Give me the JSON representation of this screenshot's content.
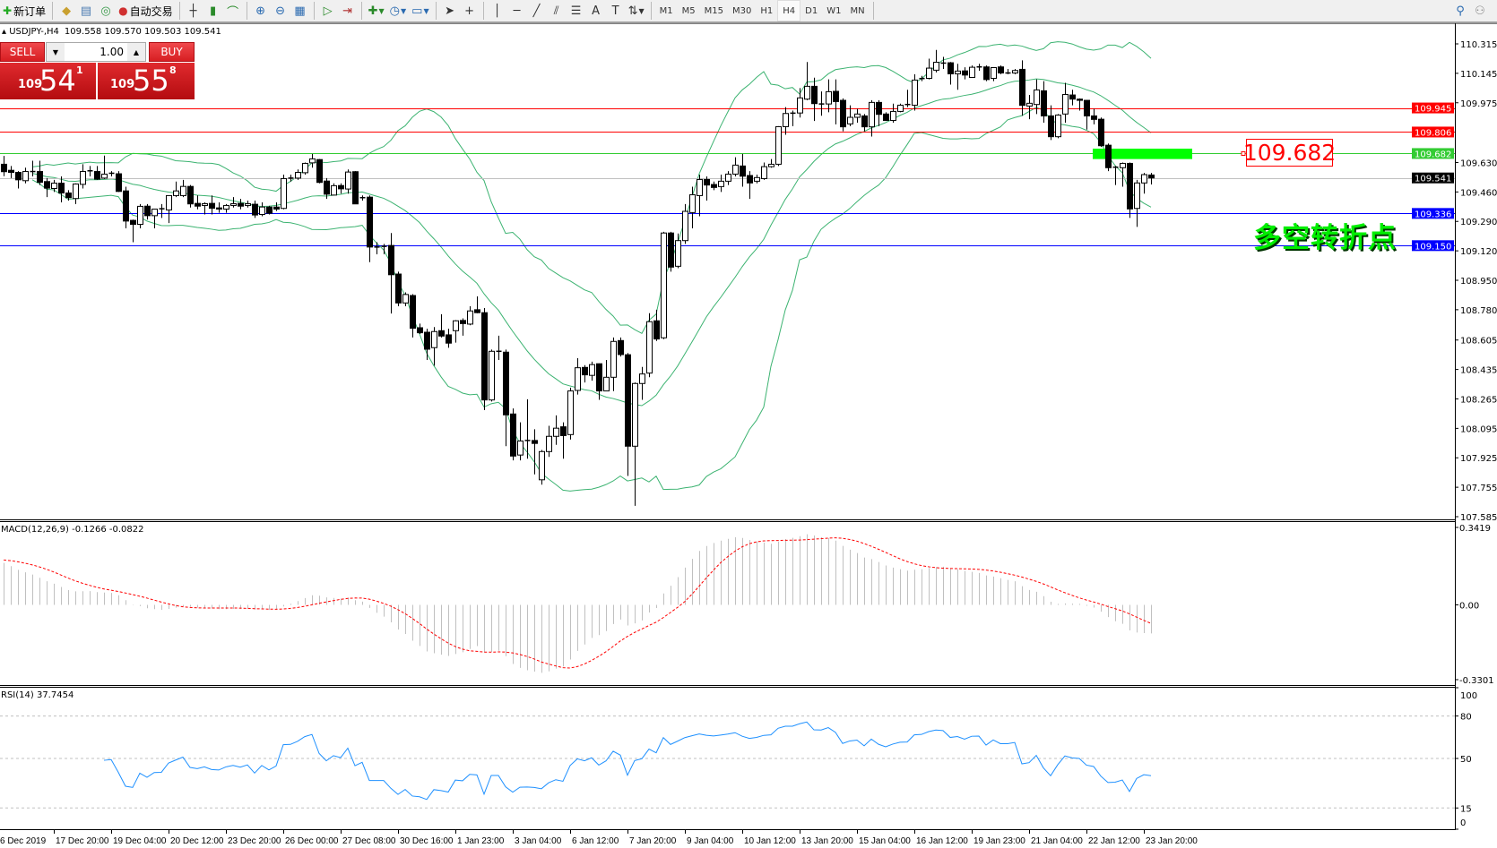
{
  "toolbar": {
    "new_order": "新订单",
    "auto_trading": "自动交易",
    "icons": [
      "new-order-icon",
      "history-icon",
      "market-watch-icon",
      "signals-icon",
      "auto-trading-icon",
      "bar-chart-icon",
      "candlestick-icon",
      "line-chart-icon",
      "zoom-in-icon",
      "zoom-out-icon",
      "tile-windows-icon",
      "auto-scroll-icon",
      "chart-shift-icon",
      "indicators-icon",
      "periods-icon",
      "templates-icon",
      "cursor-icon",
      "crosshair-icon",
      "vertical-line-icon",
      "horizontal-line-icon",
      "trendline-icon",
      "equidistant-channel-icon",
      "fibonacci-icon",
      "text-icon",
      "text-label-icon",
      "arrows-icon",
      "search-icon",
      "community-icon"
    ],
    "timeframes": [
      "M1",
      "M5",
      "M15",
      "M30",
      "H1",
      "H4",
      "D1",
      "W1",
      "MN"
    ],
    "active_timeframe": "H4"
  },
  "chart_header": {
    "symbol": "USDJPY-,H4",
    "ohlc_text": "109.558 109.570 109.503 109.541"
  },
  "trade_panel": {
    "sell_label": "SELL",
    "buy_label": "BUY",
    "lot": "1.00",
    "sell_price": {
      "prefix": "109",
      "big": "54",
      "sup": "1"
    },
    "buy_price": {
      "prefix": "109",
      "big": "55",
      "sup": "8"
    }
  },
  "annotation": {
    "level_label": "109.682",
    "text": "多空转折点"
  },
  "colors": {
    "resistance": "#ff0000",
    "pivot": "#33cc33",
    "bid": "#c0c0c0",
    "support": "#0000ff",
    "bands": "#3cb371",
    "macd_signal": "#ff0000",
    "rsi": "#1e90ff",
    "highlight": "#00ff00"
  },
  "chart_data": {
    "type": "candlestick",
    "symbol": "USDJPY-",
    "timeframe": "H4",
    "ylim": [
      107.585,
      110.315
    ],
    "price_ticks": [
      "110.315",
      "110.145",
      "109.975",
      "109.630",
      "109.460",
      "109.290",
      "109.120",
      "108.950",
      "108.780",
      "108.605",
      "108.435",
      "108.265",
      "108.095",
      "107.925",
      "107.755",
      "107.585"
    ],
    "levels": [
      {
        "price": 109.945,
        "label": "109.945",
        "color": "#ff0000"
      },
      {
        "price": 109.806,
        "label": "109.806",
        "color": "#ff0000"
      },
      {
        "price": 109.682,
        "label": "109.682",
        "color": "#33cc33"
      },
      {
        "price": 109.541,
        "label": "109.541",
        "color": "#000000",
        "line_color": "#c0c0c0"
      },
      {
        "price": 109.336,
        "label": "109.336",
        "color": "#0000ff"
      },
      {
        "price": 109.15,
        "label": "109.150",
        "color": "#0000ff"
      }
    ],
    "highlight_zone": [
      109.65,
      109.71
    ],
    "time_labels": [
      "6 Dec 2019",
      "17 Dec 20:00",
      "19 Dec 04:00",
      "20 Dec 12:00",
      "23 Dec 20:00",
      "26 Dec 00:00",
      "27 Dec 08:00",
      "30 Dec 16:00",
      "1 Jan 23:00",
      "3 Jan 04:00",
      "6 Jan 12:00",
      "7 Jan 20:00",
      "9 Jan 04:00",
      "10 Jan 12:00",
      "13 Jan 20:00",
      "15 Jan 04:00",
      "16 Jan 12:00",
      "19 Jan 23:00",
      "21 Jan 04:00",
      "22 Jan 12:00",
      "23 Jan 20:00"
    ],
    "bollinger": {
      "period": 20,
      "deviation": 2
    },
    "ohlc": [
      [
        109.62,
        109.668,
        109.551,
        109.577
      ],
      [
        109.585,
        109.61,
        109.54,
        109.573
      ],
      [
        109.573,
        109.58,
        109.48,
        109.53
      ],
      [
        109.525,
        109.6,
        109.51,
        109.578
      ],
      [
        109.578,
        109.64,
        109.55,
        109.578
      ],
      [
        109.578,
        109.64,
        109.5,
        109.516
      ],
      [
        109.52,
        109.54,
        109.43,
        109.482
      ],
      [
        109.48,
        109.53,
        109.46,
        109.511
      ],
      [
        109.511,
        109.55,
        109.4,
        109.454
      ],
      [
        109.454,
        109.47,
        109.41,
        109.427
      ],
      [
        109.422,
        109.51,
        109.39,
        109.506
      ],
      [
        109.504,
        109.62,
        109.48,
        109.578
      ],
      [
        109.582,
        109.61,
        109.55,
        109.582
      ],
      [
        109.578,
        109.61,
        109.53,
        109.534
      ],
      [
        109.54,
        109.67,
        109.535,
        109.563
      ],
      [
        109.568,
        109.58,
        109.55,
        109.568
      ],
      [
        109.565,
        109.58,
        109.46,
        109.463
      ],
      [
        109.466,
        109.49,
        109.25,
        109.292
      ],
      [
        109.296,
        109.3,
        109.17,
        109.273
      ],
      [
        109.273,
        109.39,
        109.25,
        109.377
      ],
      [
        109.378,
        109.39,
        109.3,
        109.323
      ],
      [
        109.323,
        109.36,
        109.25,
        109.361
      ],
      [
        109.363,
        109.39,
        109.31,
        109.363
      ],
      [
        109.356,
        109.44,
        109.28,
        109.439
      ],
      [
        109.439,
        109.52,
        109.43,
        109.466
      ],
      [
        109.439,
        109.53,
        109.43,
        109.492
      ],
      [
        109.492,
        109.5,
        109.37,
        109.391
      ],
      [
        109.394,
        109.44,
        109.36,
        109.378
      ],
      [
        109.382,
        109.4,
        109.33,
        109.392
      ],
      [
        109.394,
        109.44,
        109.33,
        109.366
      ],
      [
        109.368,
        109.4,
        109.34,
        109.361
      ],
      [
        109.361,
        109.39,
        109.34,
        109.382
      ],
      [
        109.382,
        109.43,
        109.37,
        109.392
      ],
      [
        109.394,
        109.42,
        109.36,
        109.378
      ],
      [
        109.382,
        109.41,
        109.37,
        109.392
      ],
      [
        109.389,
        109.41,
        109.31,
        109.327
      ],
      [
        109.33,
        109.4,
        109.32,
        109.373
      ],
      [
        109.373,
        109.38,
        109.33,
        109.337
      ],
      [
        109.373,
        109.4,
        109.35,
        109.361
      ],
      [
        109.365,
        109.56,
        109.36,
        109.537
      ],
      [
        109.54,
        109.56,
        109.52,
        109.54
      ],
      [
        109.54,
        109.59,
        109.53,
        109.573
      ],
      [
        109.571,
        109.63,
        109.56,
        109.625
      ],
      [
        109.628,
        109.68,
        109.6,
        109.651
      ],
      [
        109.647,
        109.65,
        109.51,
        109.515
      ],
      [
        109.523,
        109.54,
        109.42,
        109.447
      ],
      [
        109.442,
        109.51,
        109.44,
        109.496
      ],
      [
        109.497,
        109.51,
        109.45,
        109.478
      ],
      [
        109.477,
        109.59,
        109.45,
        109.575
      ],
      [
        109.577,
        109.58,
        109.39,
        109.391
      ],
      [
        109.427,
        109.44,
        109.41,
        109.427
      ],
      [
        109.43,
        109.44,
        109.055,
        109.142
      ],
      [
        109.142,
        109.17,
        109.1,
        109.142
      ],
      [
        109.146,
        109.16,
        109.1,
        109.141
      ],
      [
        109.151,
        109.223,
        108.758,
        108.982
      ],
      [
        108.986,
        109.0,
        108.8,
        108.819
      ],
      [
        108.819,
        108.88,
        108.8,
        108.868
      ],
      [
        108.862,
        108.87,
        108.62,
        108.673
      ],
      [
        108.676,
        108.7,
        108.64,
        108.647
      ],
      [
        108.65,
        108.67,
        108.49,
        108.552
      ],
      [
        108.561,
        108.68,
        108.457,
        108.654
      ],
      [
        108.659,
        108.754,
        108.62,
        108.628
      ],
      [
        108.635,
        108.67,
        108.56,
        108.587
      ],
      [
        108.659,
        108.72,
        108.59,
        108.716
      ],
      [
        108.718,
        108.73,
        108.63,
        108.7
      ],
      [
        108.697,
        108.8,
        108.69,
        108.773
      ],
      [
        108.78,
        108.857,
        108.76,
        108.763
      ],
      [
        108.763,
        108.79,
        108.2,
        108.259
      ],
      [
        108.259,
        108.55,
        108.25,
        108.54
      ],
      [
        108.54,
        108.63,
        108.49,
        108.54
      ],
      [
        108.535,
        108.55,
        107.992,
        108.173
      ],
      [
        108.178,
        108.21,
        107.91,
        107.935
      ],
      [
        107.941,
        108.13,
        107.91,
        108.022
      ],
      [
        108.025,
        108.263,
        107.92,
        108.025
      ],
      [
        108.025,
        108.09,
        107.829,
        108.008
      ],
      [
        107.798,
        107.97,
        107.77,
        107.961
      ],
      [
        107.961,
        108.11,
        107.93,
        108.049
      ],
      [
        108.049,
        108.17,
        108.0,
        108.096
      ],
      [
        108.104,
        108.13,
        107.92,
        108.053
      ],
      [
        108.059,
        108.33,
        108.03,
        108.311
      ],
      [
        108.314,
        108.5,
        108.29,
        108.445
      ],
      [
        108.447,
        108.46,
        108.36,
        108.404
      ],
      [
        108.401,
        108.48,
        108.37,
        108.463
      ],
      [
        108.468,
        108.47,
        108.26,
        108.311
      ],
      [
        108.311,
        108.49,
        108.31,
        108.39
      ],
      [
        108.39,
        108.62,
        108.31,
        108.597
      ],
      [
        108.602,
        108.62,
        108.51,
        108.521
      ],
      [
        108.52,
        108.53,
        107.82,
        107.992
      ],
      [
        107.992,
        108.36,
        107.648,
        108.354
      ],
      [
        108.354,
        108.45,
        108.26,
        108.409
      ],
      [
        108.414,
        108.76,
        108.39,
        108.711
      ],
      [
        108.716,
        108.78,
        108.6,
        108.611
      ],
      [
        108.618,
        109.23,
        108.61,
        109.223
      ],
      [
        109.223,
        109.23,
        109.0,
        109.026
      ],
      [
        109.031,
        109.22,
        109.02,
        109.179
      ],
      [
        109.179,
        109.39,
        109.16,
        109.348
      ],
      [
        109.341,
        109.49,
        109.25,
        109.444
      ],
      [
        109.439,
        109.56,
        109.32,
        109.532
      ],
      [
        109.532,
        109.55,
        109.41,
        109.5
      ],
      [
        109.503,
        109.52,
        109.47,
        109.486
      ],
      [
        109.491,
        109.56,
        109.46,
        109.522
      ],
      [
        109.522,
        109.58,
        109.5,
        109.563
      ],
      [
        109.563,
        109.66,
        109.55,
        109.615
      ],
      [
        109.61,
        109.68,
        109.49,
        109.551
      ],
      [
        109.555,
        109.58,
        109.42,
        109.512
      ],
      [
        109.522,
        109.56,
        109.51,
        109.543
      ],
      [
        109.537,
        109.63,
        109.53,
        109.606
      ],
      [
        109.606,
        109.65,
        109.6,
        109.62
      ],
      [
        109.62,
        109.84,
        109.61,
        109.837
      ],
      [
        109.837,
        109.95,
        109.79,
        109.913
      ],
      [
        109.915,
        109.93,
        109.84,
        109.915
      ],
      [
        109.916,
        110.06,
        109.89,
        110.003
      ],
      [
        109.996,
        110.21,
        109.99,
        110.07
      ],
      [
        110.07,
        110.12,
        109.87,
        109.97
      ],
      [
        109.968,
        110.04,
        109.9,
        109.968
      ],
      [
        109.968,
        110.11,
        109.92,
        110.039
      ],
      [
        110.041,
        110.11,
        109.85,
        109.982
      ],
      [
        109.989,
        110.0,
        109.81,
        109.836
      ],
      [
        109.853,
        109.96,
        109.84,
        109.891
      ],
      [
        109.891,
        109.94,
        109.86,
        109.91
      ],
      [
        109.899,
        109.91,
        109.81,
        109.836
      ],
      [
        109.836,
        109.99,
        109.78,
        109.977
      ],
      [
        109.977,
        109.99,
        109.84,
        109.908
      ],
      [
        109.91,
        109.92,
        109.87,
        109.873
      ],
      [
        109.873,
        109.97,
        109.86,
        109.925
      ],
      [
        109.925,
        109.97,
        109.92,
        109.961
      ],
      [
        109.965,
        110.05,
        109.95,
        109.965
      ],
      [
        109.961,
        110.14,
        109.93,
        110.106
      ],
      [
        110.115,
        110.13,
        110.1,
        110.115
      ],
      [
        110.116,
        110.23,
        110.11,
        110.175
      ],
      [
        110.163,
        110.28,
        110.15,
        110.209
      ],
      [
        110.204,
        110.24,
        110.17,
        110.204
      ],
      [
        110.206,
        110.21,
        110.08,
        110.142
      ],
      [
        110.142,
        110.2,
        110.05,
        110.158
      ],
      [
        110.159,
        110.18,
        110.11,
        110.135
      ],
      [
        110.121,
        110.19,
        110.12,
        110.18
      ],
      [
        110.182,
        110.2,
        110.16,
        110.182
      ],
      [
        110.182,
        110.19,
        110.1,
        110.109
      ],
      [
        110.116,
        110.18,
        110.1,
        110.178
      ],
      [
        110.182,
        110.19,
        110.14,
        110.147
      ],
      [
        110.147,
        110.17,
        110.14,
        110.147
      ],
      [
        110.147,
        110.17,
        110.14,
        110.161
      ],
      [
        110.168,
        110.22,
        109.9,
        109.96
      ],
      [
        109.956,
        110.02,
        109.88,
        109.972
      ],
      [
        109.965,
        110.11,
        109.91,
        110.049
      ],
      [
        110.044,
        110.1,
        109.86,
        109.899
      ],
      [
        109.899,
        109.96,
        109.76,
        109.779
      ],
      [
        109.779,
        109.91,
        109.77,
        109.904
      ],
      [
        109.91,
        110.09,
        109.86,
        110.023
      ],
      [
        110.02,
        110.05,
        109.96,
        109.996
      ],
      [
        109.996,
        110.0,
        109.93,
        109.989
      ],
      [
        109.989,
        109.99,
        109.82,
        109.899
      ],
      [
        109.899,
        109.94,
        109.85,
        109.879
      ],
      [
        109.88,
        109.89,
        109.72,
        109.727
      ],
      [
        109.73,
        109.74,
        109.58,
        109.6
      ],
      [
        109.603,
        109.61,
        109.5,
        109.603
      ],
      [
        109.6,
        109.63,
        109.49,
        109.625
      ],
      [
        109.625,
        109.63,
        109.31,
        109.362
      ],
      [
        109.365,
        109.53,
        109.258,
        109.512
      ],
      [
        109.512,
        109.57,
        109.45,
        109.56
      ],
      [
        109.558,
        109.57,
        109.503,
        109.541
      ]
    ],
    "macd": {
      "label": "MACD(12,26,9) -0.1266 -0.0822",
      "ylim": [
        -0.3301,
        0.3419
      ],
      "ticks": [
        "0.3419",
        "0.00",
        "-0.3301"
      ]
    },
    "rsi": {
      "label": "RSI(14) 37.7454",
      "levels": [
        80,
        50,
        15
      ],
      "ticks": [
        "100",
        "80",
        "50",
        "15",
        "0"
      ]
    }
  }
}
